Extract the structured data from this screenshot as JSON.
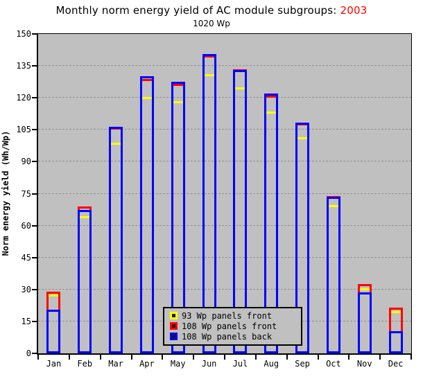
{
  "page": {
    "title_main": "Monthly norm energy yield of AC module subgroups: ",
    "title_year": "2003",
    "subtitle": "1020 Wp"
  },
  "chart_data": {
    "type": "bar",
    "title": "Monthly norm energy yield of AC module subgroups: 2003",
    "subtitle": "1020 Wp",
    "xlabel": "",
    "ylabel": "Norm energy yield (Wh/Wp)",
    "ylim": [
      0,
      150
    ],
    "ytick_step": 15,
    "grid": "horizontal dashed gridlines every 15",
    "plot_bg_color": "#c0c0c0",
    "grid_color": "#909090",
    "bar_style": "outlined overlapping bars, draw order: yellow, red, blue",
    "legend_position": "inside bottom-center",
    "title_year_color": "#ff0000",
    "categories": [
      "Jan",
      "Feb",
      "Mar",
      "Apr",
      "May",
      "Jun",
      "Jul",
      "Aug",
      "Sep",
      "Oct",
      "Nov",
      "Dec"
    ],
    "series": [
      {
        "name": "93 Wp panels front",
        "color": "#ffff00",
        "values": [
          27.5,
          64.5,
          99,
          120.5,
          118.5,
          131,
          125,
          113.5,
          101.5,
          69.5,
          30.5,
          20
        ]
      },
      {
        "name": "108 Wp panels front",
        "color": "#ff0000",
        "values": [
          29,
          69,
          106,
          129,
          126.5,
          140,
          133.5,
          121,
          108,
          74,
          32.5,
          21.5
        ]
      },
      {
        "name": "108 Wp panels back",
        "color": "#0000ff",
        "values": [
          20.5,
          67.5,
          106.5,
          130,
          127.5,
          140.5,
          133,
          122,
          108.5,
          73.5,
          28.5,
          10.5
        ]
      }
    ]
  }
}
